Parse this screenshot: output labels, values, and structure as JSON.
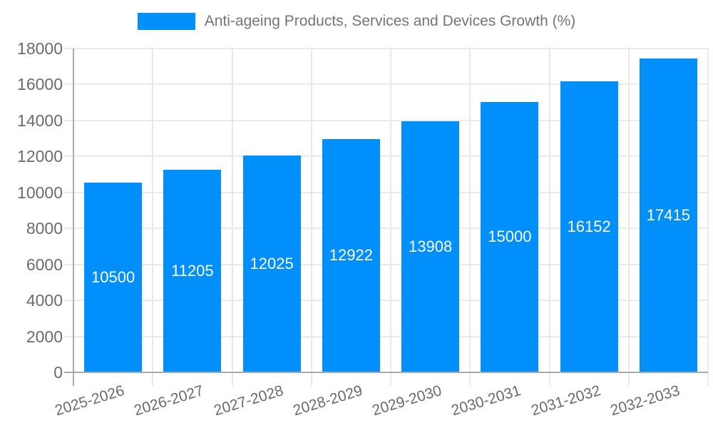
{
  "chart_data": {
    "type": "bar",
    "title": "Anti-ageing Products, Services and Devices Growth (%)",
    "categories": [
      "2025-2026",
      "2026-2027",
      "2027-2028",
      "2028-2029",
      "2029-2030",
      "2030-2031",
      "2031-2032",
      "2032-2033"
    ],
    "values": [
      10500,
      11205,
      12025,
      12922,
      13908,
      15000,
      16152,
      17415
    ],
    "bar_labels": [
      "10500",
      "11205",
      "12025",
      "12922",
      "13908",
      "15000",
      "16152",
      "17415"
    ],
    "yticks": [
      "0",
      "2000",
      "4000",
      "6000",
      "8000",
      "10000",
      "12000",
      "14000",
      "16000",
      "18000"
    ],
    "ylim": [
      0,
      18000
    ],
    "ytick_step": 2000,
    "xlabel": "",
    "ylabel": "",
    "grid": true,
    "legend_position": "top",
    "colors": {
      "bar": "#008ffb",
      "bar_value_label": "#ffffff",
      "axis_text": "#6b6b6b",
      "legend_text": "#757575",
      "grid": "#e9e9e9",
      "axis_line": "#ababab"
    }
  }
}
